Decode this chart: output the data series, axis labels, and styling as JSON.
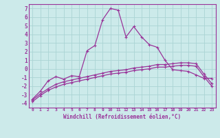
{
  "xlabel": "Windchill (Refroidissement éolien,°C)",
  "background_color": "#cceaea",
  "grid_color": "#aad4d4",
  "line_color": "#993399",
  "x": [
    0,
    1,
    2,
    3,
    4,
    5,
    6,
    7,
    8,
    9,
    10,
    11,
    12,
    13,
    14,
    15,
    16,
    17,
    18,
    19,
    20,
    21,
    22,
    23
  ],
  "line1": [
    -3.5,
    -2.6,
    -1.4,
    -0.9,
    -1.2,
    -0.8,
    -0.9,
    2.1,
    2.7,
    5.7,
    7.0,
    6.8,
    3.7,
    4.9,
    3.7,
    2.8,
    2.5,
    1.0,
    -0.1,
    -0.2,
    -0.3,
    -0.7,
    -1.1,
    -1.1
  ],
  "line2": [
    -3.6,
    -2.9,
    -2.3,
    -1.8,
    -1.5,
    -1.3,
    -1.1,
    -0.9,
    -0.7,
    -0.5,
    -0.3,
    -0.2,
    -0.1,
    0.1,
    0.2,
    0.3,
    0.5,
    0.5,
    0.6,
    0.7,
    0.7,
    0.6,
    -0.6,
    -1.7
  ],
  "line3": [
    -3.8,
    -3.1,
    -2.5,
    -2.1,
    -1.8,
    -1.6,
    -1.4,
    -1.2,
    -1.0,
    -0.8,
    -0.6,
    -0.5,
    -0.4,
    -0.2,
    -0.1,
    0.0,
    0.2,
    0.2,
    0.3,
    0.4,
    0.4,
    0.3,
    -0.9,
    -2.0
  ],
  "ylim": [
    -4.5,
    7.5
  ],
  "xlim": [
    -0.5,
    23.5
  ],
  "yticks": [
    -4,
    -3,
    -2,
    -1,
    0,
    1,
    2,
    3,
    4,
    5,
    6,
    7
  ],
  "xticks": [
    0,
    1,
    2,
    3,
    4,
    5,
    6,
    7,
    8,
    9,
    10,
    11,
    12,
    13,
    14,
    15,
    16,
    17,
    18,
    19,
    20,
    21,
    22,
    23
  ]
}
